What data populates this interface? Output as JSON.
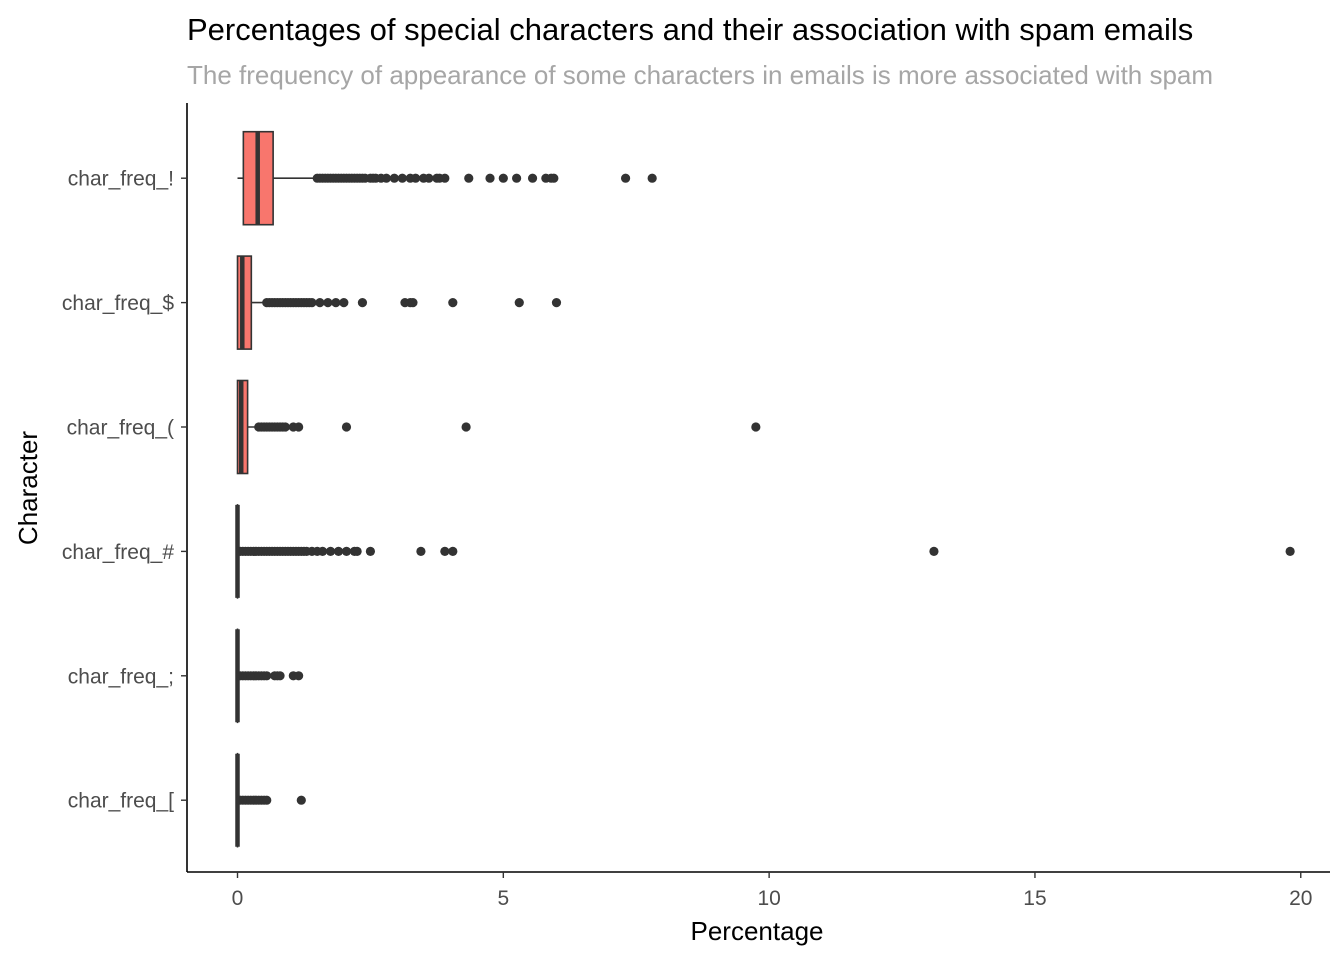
{
  "chart_data": {
    "type": "boxplot",
    "orientation": "horizontal",
    "title": "Percentages of special characters and their association with spam emails",
    "subtitle": "The frequency of appearance of some characters in emails is more associated with spam",
    "xlabel": "Percentage",
    "ylabel": "Character",
    "xlim": [
      -0.95,
      20.55
    ],
    "xticks": [
      0,
      5,
      10,
      15,
      20
    ],
    "grid": false,
    "colors": {
      "box_fill": "#f8766d",
      "box_line": "#333333",
      "outlier": "#333333",
      "axis": "#000000"
    },
    "categories": [
      "char_freq_!",
      "char_freq_$",
      "char_freq_(",
      "char_freq_#",
      "char_freq_;",
      "char_freq_["
    ],
    "boxes": [
      {
        "category": "char_freq_!",
        "min": 0.0,
        "q1": 0.11,
        "median": 0.38,
        "q3": 0.67,
        "whisker_high": 1.48,
        "outliers": [
          1.5,
          1.55,
          1.6,
          1.65,
          1.7,
          1.75,
          1.8,
          1.85,
          1.9,
          1.95,
          2.0,
          2.05,
          2.1,
          2.15,
          2.2,
          2.25,
          2.3,
          2.35,
          2.4,
          2.5,
          2.55,
          2.6,
          2.7,
          2.8,
          2.95,
          3.1,
          3.25,
          3.35,
          3.5,
          3.6,
          3.75,
          3.8,
          3.9,
          4.35,
          4.75,
          5.0,
          5.25,
          5.55,
          5.8,
          5.9,
          5.95,
          7.3,
          7.8
        ]
      },
      {
        "category": "char_freq_$",
        "min": 0.0,
        "q1": 0.0,
        "median": 0.09,
        "q3": 0.26,
        "whisker_high": 0.5,
        "outliers": [
          0.55,
          0.6,
          0.65,
          0.7,
          0.75,
          0.8,
          0.85,
          0.9,
          0.95,
          1.0,
          1.05,
          1.1,
          1.15,
          1.2,
          1.25,
          1.3,
          1.35,
          1.4,
          1.55,
          1.7,
          1.85,
          2.0,
          2.35,
          3.15,
          3.25,
          3.3,
          4.05,
          5.3,
          6.0
        ]
      },
      {
        "category": "char_freq_(",
        "min": 0.0,
        "q1": 0.0,
        "median": 0.07,
        "q3": 0.19,
        "whisker_high": 0.38,
        "outliers": [
          0.4,
          0.45,
          0.5,
          0.55,
          0.6,
          0.65,
          0.7,
          0.75,
          0.8,
          0.85,
          0.9,
          1.05,
          1.15,
          2.05,
          4.3,
          9.75
        ]
      },
      {
        "category": "char_freq_#",
        "min": 0.0,
        "q1": 0.0,
        "median": 0.0,
        "q3": 0.0,
        "whisker_high": 0.0,
        "outliers": [
          0.05,
          0.1,
          0.15,
          0.2,
          0.25,
          0.3,
          0.35,
          0.4,
          0.45,
          0.5,
          0.55,
          0.6,
          0.65,
          0.7,
          0.75,
          0.8,
          0.85,
          0.9,
          0.95,
          1.0,
          1.05,
          1.1,
          1.15,
          1.2,
          1.25,
          1.3,
          1.4,
          1.5,
          1.6,
          1.75,
          1.9,
          2.05,
          2.2,
          2.25,
          2.5,
          3.45,
          3.9,
          4.05,
          13.1,
          19.8
        ]
      },
      {
        "category": "char_freq_;",
        "min": 0.0,
        "q1": 0.0,
        "median": 0.0,
        "q3": 0.0,
        "whisker_high": 0.0,
        "outliers": [
          0.05,
          0.1,
          0.15,
          0.2,
          0.25,
          0.3,
          0.35,
          0.4,
          0.45,
          0.5,
          0.55,
          0.7,
          0.75,
          0.8,
          1.05,
          1.15
        ]
      },
      {
        "category": "char_freq_[",
        "min": 0.0,
        "q1": 0.0,
        "median": 0.0,
        "q3": 0.0,
        "whisker_high": 0.0,
        "outliers": [
          0.05,
          0.1,
          0.15,
          0.2,
          0.25,
          0.3,
          0.35,
          0.4,
          0.45,
          0.5,
          0.55,
          1.2
        ]
      }
    ]
  }
}
